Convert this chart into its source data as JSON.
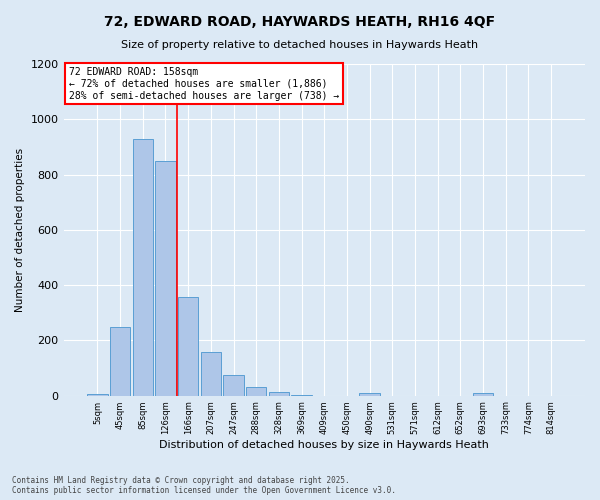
{
  "title1": "72, EDWARD ROAD, HAYWARDS HEATH, RH16 4QF",
  "title2": "Size of property relative to detached houses in Haywards Heath",
  "xlabel": "Distribution of detached houses by size in Haywards Heath",
  "ylabel": "Number of detached properties",
  "categories": [
    "5sqm",
    "45sqm",
    "85sqm",
    "126sqm",
    "166sqm",
    "207sqm",
    "247sqm",
    "288sqm",
    "328sqm",
    "369sqm",
    "409sqm",
    "450sqm",
    "490sqm",
    "531sqm",
    "571sqm",
    "612sqm",
    "652sqm",
    "693sqm",
    "733sqm",
    "774sqm",
    "814sqm"
  ],
  "values": [
    5,
    248,
    930,
    848,
    358,
    157,
    75,
    32,
    13,
    2,
    0,
    0,
    8,
    0,
    0,
    0,
    0,
    8,
    0,
    0,
    0
  ],
  "bar_color": "#aec6e8",
  "bar_edge_color": "#5a9fd4",
  "background_color": "#dce9f5",
  "grid_color": "#ffffff",
  "vline_x": 3.5,
  "vline_color": "red",
  "annotation_title": "72 EDWARD ROAD: 158sqm",
  "annotation_line1": "← 72% of detached houses are smaller (1,886)",
  "annotation_line2": "28% of semi-detached houses are larger (738) →",
  "annotation_box_edgecolor": "red",
  "ylim": [
    0,
    1200
  ],
  "yticks": [
    0,
    200,
    400,
    600,
    800,
    1000,
    1200
  ],
  "footer1": "Contains HM Land Registry data © Crown copyright and database right 2025.",
  "footer2": "Contains public sector information licensed under the Open Government Licence v3.0."
}
